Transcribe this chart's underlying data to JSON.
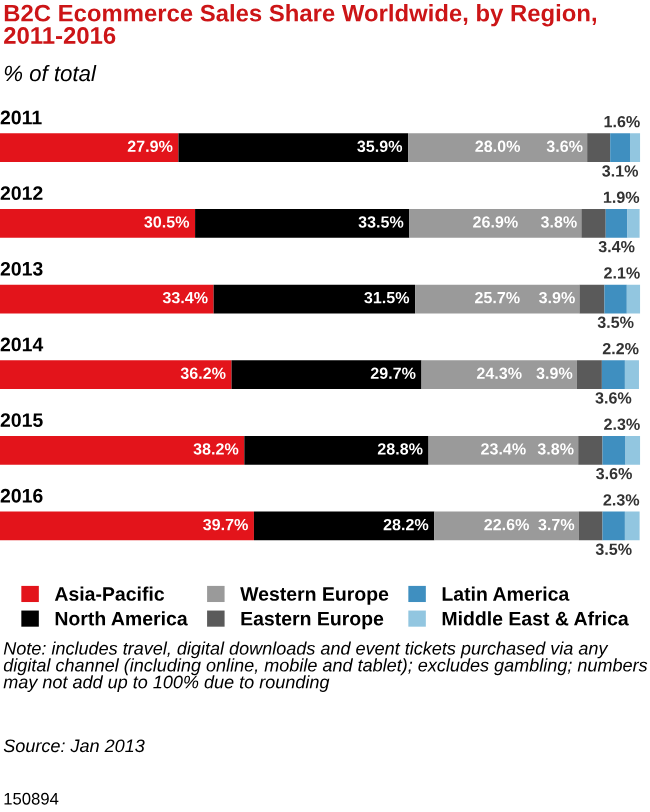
{
  "chart_data": {
    "type": "bar",
    "orientation": "horizontal",
    "stacked": true,
    "title": "B2C Ecommerce Sales Share Worldwide, by Region,\n2011-2016",
    "subtitle": "% of total",
    "categories": [
      "2011",
      "2012",
      "2013",
      "2014",
      "2015",
      "2016"
    ],
    "series": [
      {
        "name": "Asia-Pacific",
        "color": "#e3141b",
        "values": [
          27.9,
          30.5,
          33.4,
          36.2,
          38.2,
          39.7
        ],
        "value_labels": [
          "27.9%",
          "30.5%",
          "33.4%",
          "36.2%",
          "38.2%",
          "39.7%"
        ]
      },
      {
        "name": "North America",
        "color": "#000000",
        "values": [
          35.9,
          33.5,
          31.5,
          29.7,
          28.8,
          28.2
        ],
        "value_labels": [
          "35.9%",
          "33.5%",
          "31.5%",
          "29.7%",
          "28.8%",
          "28.2%"
        ]
      },
      {
        "name": "Western Europe",
        "color": "#9a9a9a",
        "values": [
          28.0,
          26.9,
          25.7,
          24.3,
          23.4,
          22.6
        ],
        "value_labels": [
          "28.0%",
          "26.9%",
          "25.7%",
          "24.3%",
          "23.4%",
          "22.6%"
        ]
      },
      {
        "name": "Eastern Europe",
        "color": "#5a5a5a",
        "values": [
          3.6,
          3.8,
          3.9,
          3.9,
          3.8,
          3.7
        ],
        "value_labels": [
          "3.6%",
          "3.8%",
          "3.9%",
          "3.9%",
          "3.8%",
          "3.7%"
        ]
      },
      {
        "name": "Latin America",
        "color": "#3f8fc0",
        "values": [
          3.1,
          3.4,
          3.5,
          3.6,
          3.6,
          3.5
        ],
        "value_labels": [
          "3.1%",
          "3.4%",
          "3.5%",
          "3.6%",
          "3.6%",
          "3.5%"
        ]
      },
      {
        "name": "Middle East & Africa",
        "color": "#92c6e0",
        "values": [
          1.6,
          1.9,
          2.1,
          2.2,
          2.3,
          2.3
        ],
        "value_labels": [
          "1.6%",
          "1.9%",
          "2.1%",
          "2.2%",
          "2.3%",
          "2.3%"
        ]
      }
    ],
    "tick_labels": "y",
    "legend": "bottom",
    "grid": false,
    "annotations": [
      "Note: includes travel, digital downloads and event tickets purchased via any digital channel (including online, mobile and tablet); excludes gambling; numbers may not add up to 100% due to rounding",
      "Source: Jan 2013",
      "150894"
    ]
  }
}
